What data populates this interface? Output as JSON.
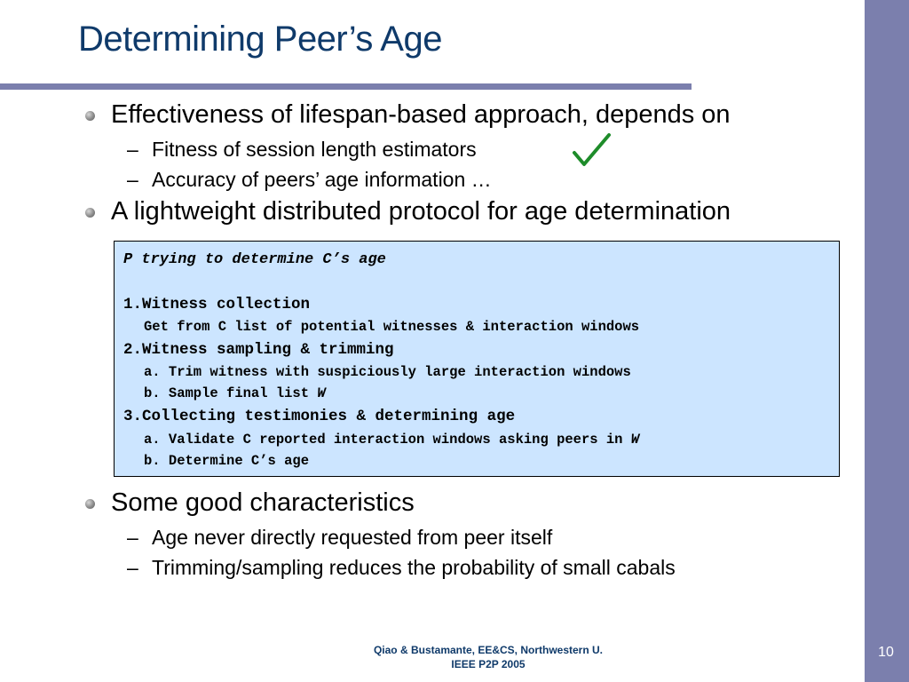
{
  "slide": {
    "title": "Determining Peer’s Age",
    "number": "10",
    "accent_color": "#7b7fad",
    "title_color": "#0f3a6a"
  },
  "bullets": {
    "b1": "Effectiveness of lifespan-based approach, depends on",
    "b1_subs": [
      "Fitness of session length estimators",
      "Accuracy of peers’ age information …"
    ],
    "check_icon": "checkmark-icon",
    "b2": "A lightweight distributed protocol for age determination",
    "b3": "Some good characteristics",
    "b3_subs": [
      "Age never directly requested from peer itself",
      "Trimming/sampling reduces the probability of small cabals"
    ],
    "dash": "–"
  },
  "protocol": {
    "heading": "P trying to determine C’s age",
    "step1": "1.Witness collection",
    "step1_detail": "Get from C list of potential witnesses & interaction windows",
    "step2": "2.Witness sampling & trimming",
    "step2_a": "a. Trim witness with suspiciously large interaction windows",
    "step2_b_prefix": "b. Sample final list ",
    "step2_b_var": "W",
    "step3": "3.Collecting testimonies & determining age",
    "step3_a_prefix": "a. Validate C reported interaction windows asking peers in ",
    "step3_a_var": "W",
    "step3_b": "b. Determine C’s age",
    "background_color": "#cce5ff"
  },
  "footer": {
    "line1": "Qiao & Bustamante, EE&CS, Northwestern U.",
    "line2": "IEEE P2P 2005"
  }
}
